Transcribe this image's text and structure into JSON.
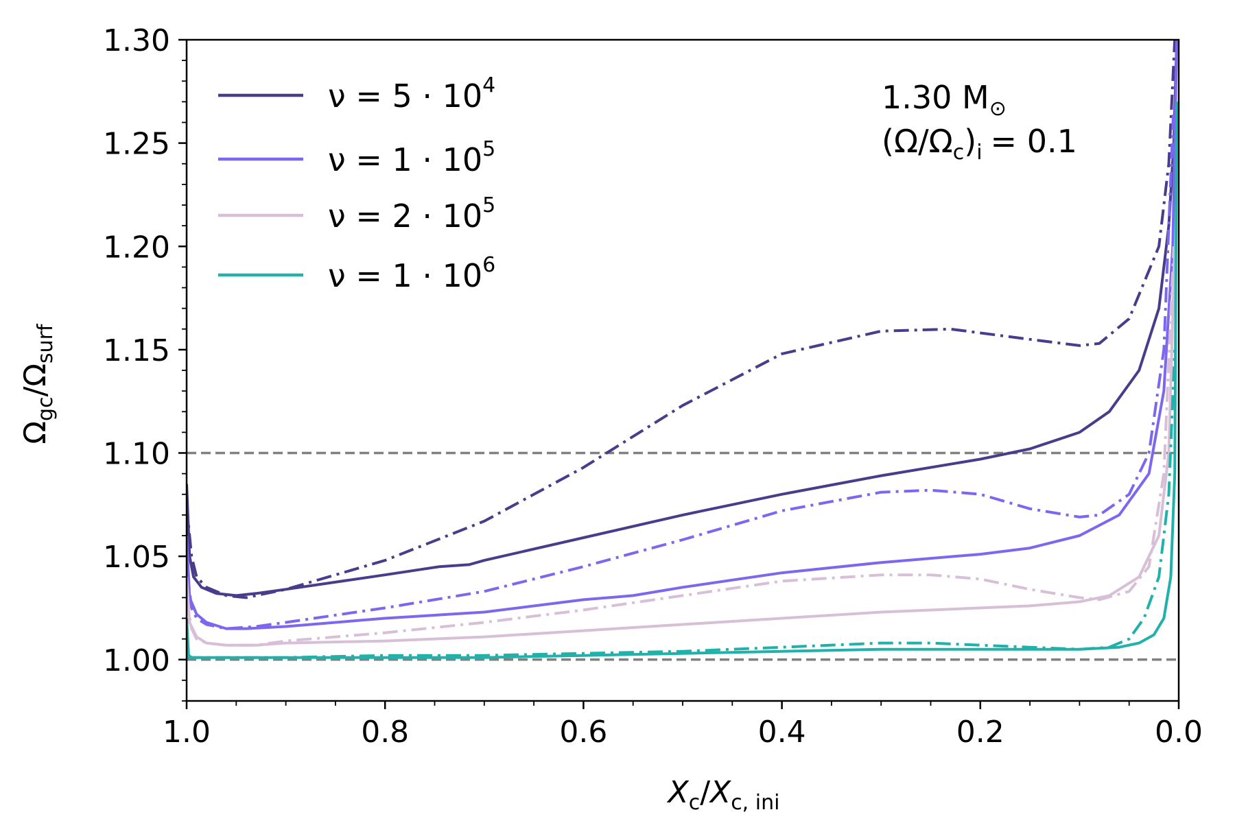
{
  "chart_data": {
    "type": "line",
    "title": "",
    "xlabel": "X_c/X_c,ini",
    "ylabel": "Ω_gc/Ω_surf",
    "xlim": [
      1.0,
      0.0
    ],
    "ylim": [
      0.98,
      1.3
    ],
    "x_ticks": [
      "1.0",
      "0.8",
      "0.6",
      "0.4",
      "0.2",
      "0.0"
    ],
    "y_ticks": [
      "1.00",
      "1.05",
      "1.10",
      "1.15",
      "1.20",
      "1.25",
      "1.30"
    ],
    "annotation": {
      "mass": "1.30 M",
      "rotation_prefix": "(Ω/Ω",
      "rotation_suffix": "= 0.1"
    },
    "reference_lines": [
      1.0,
      1.1
    ],
    "legend": [
      {
        "label_prefix": "ν = 5 · 10",
        "exponent": "4",
        "color": "#483d8b"
      },
      {
        "label_prefix": "ν = 1 · 10",
        "exponent": "5",
        "color": "#7b68ee"
      },
      {
        "label_prefix": "ν = 2 · 10",
        "exponent": "5",
        "color": "#d8bfd8"
      },
      {
        "label_prefix": "ν = 1 · 10",
        "exponent": "6",
        "color": "#20b2aa"
      }
    ],
    "series": [
      {
        "name": "ν = 5·10^4 (solid)",
        "color": "#483d8b",
        "style": "solid",
        "x": [
          1.0,
          0.997,
          0.993,
          0.985,
          0.97,
          0.95,
          0.93,
          0.9,
          0.8,
          0.745,
          0.715,
          0.7,
          0.6,
          0.5,
          0.4,
          0.3,
          0.2,
          0.15,
          0.1,
          0.07,
          0.04,
          0.02,
          0.01,
          0.005,
          0.002
        ],
        "y": [
          1.085,
          1.05,
          1.04,
          1.035,
          1.032,
          1.031,
          1.032,
          1.034,
          1.041,
          1.045,
          1.046,
          1.048,
          1.059,
          1.07,
          1.08,
          1.089,
          1.097,
          1.102,
          1.11,
          1.12,
          1.14,
          1.17,
          1.21,
          1.25,
          1.3
        ]
      },
      {
        "name": "ν = 5·10^4 (dash-dot)",
        "color": "#483d8b",
        "style": "dashdot",
        "x": [
          1.0,
          0.995,
          0.99,
          0.98,
          0.96,
          0.94,
          0.9,
          0.8,
          0.7,
          0.6,
          0.5,
          0.4,
          0.3,
          0.23,
          0.15,
          0.1,
          0.08,
          0.05,
          0.02,
          0.01,
          0.004
        ],
        "y": [
          1.075,
          1.05,
          1.04,
          1.035,
          1.031,
          1.03,
          1.034,
          1.048,
          1.067,
          1.093,
          1.123,
          1.148,
          1.159,
          1.16,
          1.155,
          1.152,
          1.153,
          1.165,
          1.2,
          1.24,
          1.3
        ]
      },
      {
        "name": "ν = 1·10^5 (solid)",
        "color": "#7b68ee",
        "style": "solid",
        "x": [
          1.0,
          0.997,
          0.99,
          0.98,
          0.96,
          0.94,
          0.9,
          0.8,
          0.7,
          0.6,
          0.55,
          0.5,
          0.4,
          0.3,
          0.2,
          0.15,
          0.1,
          0.06,
          0.03,
          0.015,
          0.006,
          0.002
        ],
        "y": [
          1.06,
          1.03,
          1.022,
          1.018,
          1.015,
          1.015,
          1.016,
          1.02,
          1.023,
          1.029,
          1.031,
          1.035,
          1.042,
          1.047,
          1.051,
          1.054,
          1.06,
          1.07,
          1.09,
          1.13,
          1.2,
          1.3
        ]
      },
      {
        "name": "ν = 1·10^5 (dash-dot)",
        "color": "#7b68ee",
        "style": "dashdot",
        "x": [
          1.0,
          0.995,
          0.99,
          0.98,
          0.96,
          0.93,
          0.9,
          0.8,
          0.7,
          0.6,
          0.5,
          0.4,
          0.3,
          0.25,
          0.2,
          0.15,
          0.1,
          0.08,
          0.05,
          0.03,
          0.015,
          0.005
        ],
        "y": [
          1.045,
          1.025,
          1.02,
          1.017,
          1.015,
          1.016,
          1.018,
          1.025,
          1.033,
          1.045,
          1.058,
          1.072,
          1.081,
          1.082,
          1.08,
          1.073,
          1.069,
          1.07,
          1.08,
          1.1,
          1.15,
          1.27
        ]
      },
      {
        "name": "ν = 2·10^5 (solid)",
        "color": "#d8bfd8",
        "style": "solid",
        "x": [
          1.0,
          0.997,
          0.99,
          0.98,
          0.96,
          0.93,
          0.9,
          0.8,
          0.7,
          0.6,
          0.5,
          0.4,
          0.3,
          0.2,
          0.15,
          0.1,
          0.07,
          0.04,
          0.02,
          0.01,
          0.004
        ],
        "y": [
          1.04,
          1.018,
          1.011,
          1.008,
          1.007,
          1.007,
          1.008,
          1.009,
          1.011,
          1.014,
          1.017,
          1.02,
          1.023,
          1.025,
          1.026,
          1.028,
          1.031,
          1.04,
          1.06,
          1.1,
          1.2
        ]
      },
      {
        "name": "ν = 2·10^5 (dash-dot)",
        "color": "#d8bfd8",
        "style": "dashdot",
        "x": [
          1.0,
          0.995,
          0.99,
          0.98,
          0.96,
          0.93,
          0.9,
          0.8,
          0.7,
          0.6,
          0.5,
          0.4,
          0.3,
          0.25,
          0.2,
          0.15,
          0.1,
          0.08,
          0.05,
          0.03,
          0.015,
          0.005
        ],
        "y": [
          1.03,
          1.015,
          1.01,
          1.008,
          1.007,
          1.007,
          1.009,
          1.013,
          1.018,
          1.024,
          1.031,
          1.038,
          1.041,
          1.041,
          1.039,
          1.034,
          1.03,
          1.029,
          1.033,
          1.045,
          1.09,
          1.2
        ]
      },
      {
        "name": "ν = 1·10^6 (solid)",
        "color": "#20b2aa",
        "style": "solid",
        "x": [
          1.0,
          0.998,
          0.995,
          0.99,
          0.9,
          0.8,
          0.7,
          0.6,
          0.5,
          0.4,
          0.3,
          0.2,
          0.1,
          0.06,
          0.04,
          0.025,
          0.015,
          0.008,
          0.004,
          0.002
        ],
        "y": [
          1.02,
          1.002,
          1.001,
          1.001,
          1.001,
          1.001,
          1.001,
          1.002,
          1.003,
          1.004,
          1.005,
          1.005,
          1.005,
          1.006,
          1.008,
          1.012,
          1.02,
          1.04,
          1.09,
          1.27
        ]
      },
      {
        "name": "ν = 1·10^6 (dash-dot)",
        "color": "#20b2aa",
        "style": "dashdot",
        "x": [
          1.0,
          0.99,
          0.9,
          0.8,
          0.7,
          0.6,
          0.5,
          0.4,
          0.3,
          0.25,
          0.2,
          0.15,
          0.1,
          0.07,
          0.05,
          0.035,
          0.02,
          0.01,
          0.004
        ],
        "y": [
          1.001,
          1.001,
          1.001,
          1.002,
          1.002,
          1.003,
          1.004,
          1.006,
          1.008,
          1.008,
          1.007,
          1.006,
          1.005,
          1.006,
          1.01,
          1.02,
          1.04,
          1.08,
          1.15
        ]
      }
    ]
  }
}
